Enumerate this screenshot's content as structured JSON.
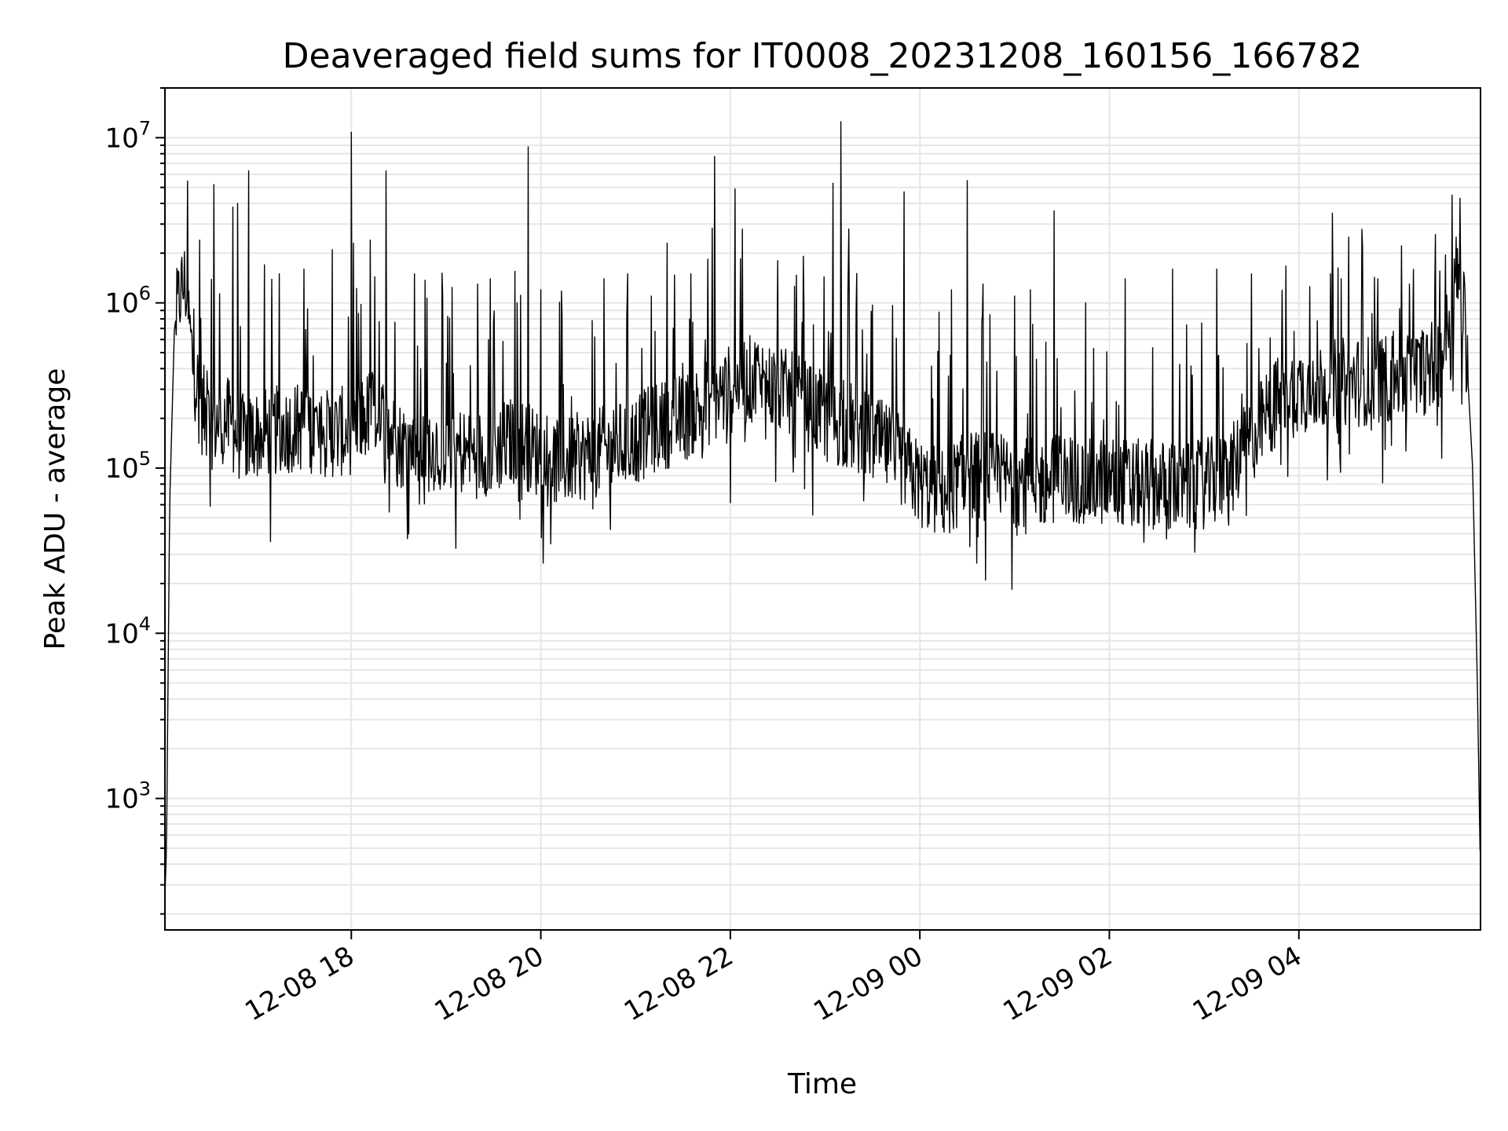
{
  "chart_data": {
    "type": "line",
    "title": "Deaveraged field sums for IT0008_20231208_160156_166782",
    "xlabel": "Time",
    "ylabel": "Peak ADU - average",
    "yscale": "log",
    "x_range": [
      "2023-12-08 16:02",
      "2023-12-09 05:55"
    ],
    "y_range": [
      160,
      20000000
    ],
    "x_ticks": [
      {
        "x": "2023-12-08 18:00",
        "label": "12-08 18"
      },
      {
        "x": "2023-12-08 20:00",
        "label": "12-08 20"
      },
      {
        "x": "2023-12-08 22:00",
        "label": "12-08 22"
      },
      {
        "x": "2023-12-09 00:00",
        "label": "12-09 00"
      },
      {
        "x": "2023-12-09 02:00",
        "label": "12-09 02"
      },
      {
        "x": "2023-12-09 04:00",
        "label": "12-09 04"
      }
    ],
    "y_ticks": [
      {
        "value": 1000,
        "base": "10",
        "exp": "3"
      },
      {
        "value": 10000,
        "base": "10",
        "exp": "4"
      },
      {
        "value": 100000,
        "base": "10",
        "exp": "5"
      },
      {
        "value": 1000000,
        "base": "10",
        "exp": "6"
      },
      {
        "value": 10000000,
        "base": "10",
        "exp": "7"
      }
    ],
    "grid": true,
    "line_color": "#000000",
    "grid_color": "#e6e6e6",
    "series": [
      {
        "points": [
          [
            "2023-12-08 16:02",
            260
          ],
          [
            "2023-12-08 16:03",
            500
          ],
          [
            "2023-12-08 16:05",
            60000
          ],
          [
            "2023-12-08 16:08",
            700000
          ],
          [
            "2023-12-08 16:12",
            1200000
          ],
          [
            "2023-12-08 16:15",
            1300000
          ],
          [
            "2023-12-08 16:20",
            400000
          ],
          [
            "2023-12-08 16:25",
            250000
          ],
          [
            "2023-12-08 16:30",
            180000
          ],
          [
            "2023-12-08 16:40",
            200000
          ],
          [
            "2023-12-08 16:50",
            150000
          ],
          [
            "2023-12-08 17:00",
            160000
          ],
          [
            "2023-12-08 17:15",
            170000
          ],
          [
            "2023-12-08 17:30",
            180000
          ],
          [
            "2023-12-08 17:45",
            160000
          ],
          [
            "2023-12-08 18:00",
            170000
          ],
          [
            "2023-12-08 18:15",
            230000
          ],
          [
            "2023-12-08 18:30",
            140000
          ],
          [
            "2023-12-08 18:45",
            130000
          ],
          [
            "2023-12-08 19:00",
            140000
          ],
          [
            "2023-12-08 19:15",
            120000
          ],
          [
            "2023-12-08 19:30",
            130000
          ],
          [
            "2023-12-08 19:45",
            150000
          ],
          [
            "2023-12-08 20:00",
            120000
          ],
          [
            "2023-12-08 20:15",
            110000
          ],
          [
            "2023-12-08 20:30",
            120000
          ],
          [
            "2023-12-08 20:45",
            130000
          ],
          [
            "2023-12-08 21:00",
            150000
          ],
          [
            "2023-12-08 21:15",
            180000
          ],
          [
            "2023-12-08 21:30",
            200000
          ],
          [
            "2023-12-08 21:45",
            250000
          ],
          [
            "2023-12-08 22:00",
            300000
          ],
          [
            "2023-12-08 22:15",
            350000
          ],
          [
            "2023-12-08 22:30",
            300000
          ],
          [
            "2023-12-08 22:45",
            250000
          ],
          [
            "2023-12-08 23:00",
            200000
          ],
          [
            "2023-12-08 23:15",
            180000
          ],
          [
            "2023-12-08 23:30",
            150000
          ],
          [
            "2023-12-08 23:45",
            120000
          ],
          [
            "2023-12-09 00:00",
            80000
          ],
          [
            "2023-12-09 00:15",
            70000
          ],
          [
            "2023-12-09 00:30",
            90000
          ],
          [
            "2023-12-09 00:45",
            90000
          ],
          [
            "2023-12-09 01:00",
            85000
          ],
          [
            "2023-12-09 01:15",
            80000
          ],
          [
            "2023-12-09 01:30",
            90000
          ],
          [
            "2023-12-09 01:45",
            80000
          ],
          [
            "2023-12-09 02:00",
            85000
          ],
          [
            "2023-12-09 02:15",
            80000
          ],
          [
            "2023-12-09 02:30",
            80000
          ],
          [
            "2023-12-09 02:45",
            75000
          ],
          [
            "2023-12-09 03:00",
            80000
          ],
          [
            "2023-12-09 03:15",
            90000
          ],
          [
            "2023-12-09 03:30",
            150000
          ],
          [
            "2023-12-09 03:45",
            250000
          ],
          [
            "2023-12-09 04:00",
            300000
          ],
          [
            "2023-12-09 04:15",
            320000
          ],
          [
            "2023-12-09 04:30",
            330000
          ],
          [
            "2023-12-09 04:45",
            340000
          ],
          [
            "2023-12-09 05:00",
            350000
          ],
          [
            "2023-12-09 05:15",
            370000
          ],
          [
            "2023-12-09 05:30",
            450000
          ],
          [
            "2023-12-09 05:40",
            1500000
          ],
          [
            "2023-12-09 05:45",
            800000
          ],
          [
            "2023-12-09 05:50",
            100000
          ],
          [
            "2023-12-09 05:53",
            5000
          ],
          [
            "2023-12-09 05:55",
            320
          ]
        ],
        "spikes": [
          [
            "2023-12-08 16:24",
            2400000
          ],
          [
            "2023-12-08 16:33",
            5200000
          ],
          [
            "2023-12-08 16:45",
            3800000
          ],
          [
            "2023-12-08 16:48",
            4000000
          ],
          [
            "2023-12-08 16:55",
            6300000
          ],
          [
            "2023-12-08 17:05",
            1700000
          ],
          [
            "2023-12-08 17:30",
            1600000
          ],
          [
            "2023-12-08 17:48",
            2100000
          ],
          [
            "2023-12-08 18:00",
            10800000
          ],
          [
            "2023-12-08 18:12",
            2400000
          ],
          [
            "2023-12-08 18:22",
            6300000
          ],
          [
            "2023-12-08 18:40",
            1500000
          ],
          [
            "2023-12-08 19:20",
            1300000
          ],
          [
            "2023-12-08 19:28",
            1400000
          ],
          [
            "2023-12-08 19:45",
            1000000
          ],
          [
            "2023-12-08 19:52",
            8800000
          ],
          [
            "2023-12-08 20:00",
            1200000
          ],
          [
            "2023-12-08 20:40",
            1400000
          ],
          [
            "2023-12-08 20:55",
            1500000
          ],
          [
            "2023-12-08 21:10",
            1100000
          ],
          [
            "2023-12-08 21:20",
            2300000
          ],
          [
            "2023-12-08 21:35",
            1500000
          ],
          [
            "2023-12-08 21:50",
            7700000
          ],
          [
            "2023-12-08 22:03",
            4900000
          ],
          [
            "2023-12-08 22:30",
            1800000
          ],
          [
            "2023-12-08 23:05",
            5300000
          ],
          [
            "2023-12-08 23:10",
            12500000
          ],
          [
            "2023-12-08 23:15",
            2800000
          ],
          [
            "2023-12-08 23:50",
            4700000
          ],
          [
            "2023-12-09 00:20",
            1200000
          ],
          [
            "2023-12-09 00:30",
            5500000
          ],
          [
            "2023-12-09 00:40",
            1300000
          ],
          [
            "2023-12-09 01:00",
            1100000
          ],
          [
            "2023-12-09 01:10",
            1200000
          ],
          [
            "2023-12-09 01:25",
            3600000
          ],
          [
            "2023-12-09 01:45",
            1000000
          ],
          [
            "2023-12-09 02:10",
            1400000
          ],
          [
            "2023-12-09 02:40",
            1600000
          ],
          [
            "2023-12-09 03:08",
            1600000
          ],
          [
            "2023-12-09 03:30",
            1500000
          ],
          [
            "2023-12-09 04:20",
            1500000
          ],
          [
            "2023-12-09 04:50",
            1400000
          ],
          [
            "2023-12-09 05:10",
            1300000
          ],
          [
            "2023-12-09 05:37",
            4500000
          ],
          [
            "2023-12-09 05:42",
            4300000
          ]
        ]
      }
    ]
  }
}
